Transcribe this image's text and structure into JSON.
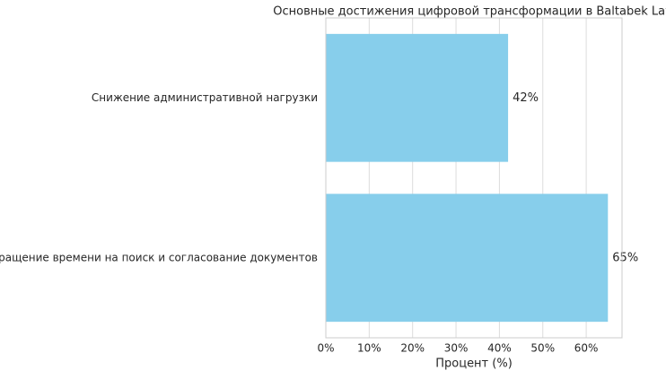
{
  "chart_data": {
    "type": "barh",
    "title": "Основные достижения цифровой трансформации в Baltabek Law",
    "categories": [
      "Снижение административной нагрузки",
      "Сокращение времени на поиск и согласование документов"
    ],
    "values": [
      42,
      65
    ],
    "value_labels": [
      "42%",
      "65%"
    ],
    "color": "#87ceeb",
    "xlabel": "Процент (%)",
    "xlim": [
      0,
      68.25
    ],
    "xticks": [
      {
        "value": 0,
        "label": "0%"
      },
      {
        "value": 10,
        "label": "10%"
      },
      {
        "value": 20,
        "label": "20%"
      },
      {
        "value": 30,
        "label": "30%"
      },
      {
        "value": 40,
        "label": "40%"
      },
      {
        "value": 50,
        "label": "50%"
      },
      {
        "value": 60,
        "label": "60%"
      }
    ],
    "grid": true
  }
}
